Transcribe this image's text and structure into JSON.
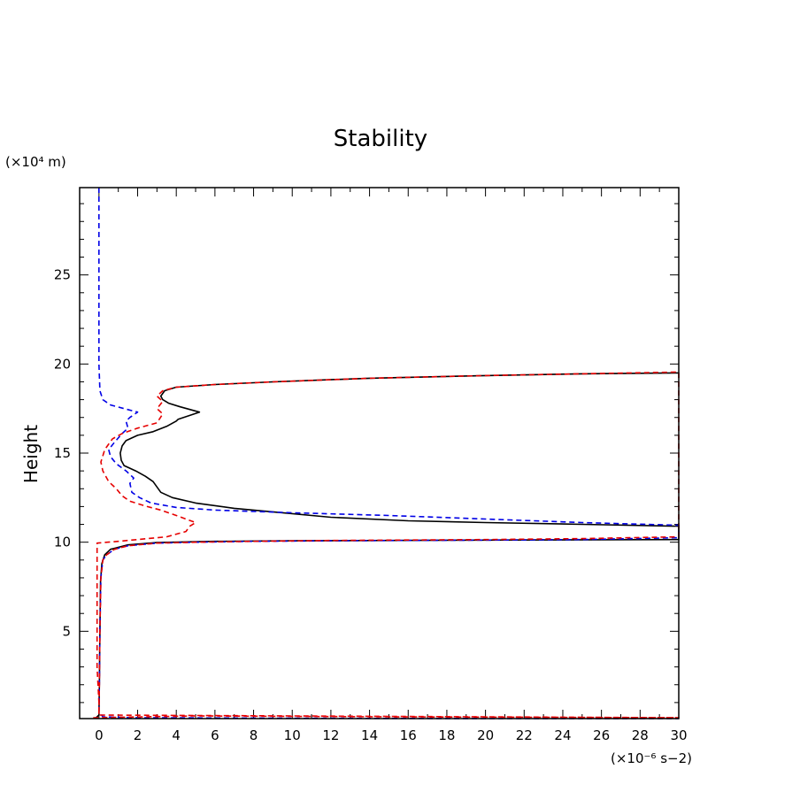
{
  "chart_data": {
    "type": "line",
    "title": "Stability",
    "xlabel": "",
    "ylabel": "Height",
    "x_unit_label": "(×10⁻⁶ s−2)",
    "y_unit_label": "(×10⁴ m)",
    "xlim": [
      -1,
      30
    ],
    "ylim": [
      0.1,
      29.9
    ],
    "x_ticks": [
      0,
      2,
      4,
      6,
      8,
      10,
      12,
      14,
      16,
      18,
      20,
      22,
      24,
      26,
      28,
      30
    ],
    "y_ticks": [
      5,
      10,
      15,
      20,
      25
    ],
    "grid": false,
    "legend": "none",
    "series": [
      {
        "color": "#000000",
        "dash": "solid",
        "points": [
          [
            -0.2,
            0.1
          ],
          [
            0,
            0.3
          ],
          [
            0.02,
            2
          ],
          [
            0.05,
            5
          ],
          [
            0.08,
            7.8
          ],
          [
            0.15,
            8.8
          ],
          [
            0.3,
            9.3
          ],
          [
            0.6,
            9.6
          ],
          [
            1.5,
            9.85
          ],
          [
            3,
            9.98
          ],
          [
            6,
            10.05
          ],
          [
            10,
            10.08
          ],
          [
            20,
            10.12
          ],
          [
            30,
            10.15
          ],
          [
            30,
            10.9
          ],
          [
            25,
            11.0
          ],
          [
            20,
            11.1
          ],
          [
            16,
            11.2
          ],
          [
            12,
            11.4
          ],
          [
            9,
            11.7
          ],
          [
            7,
            11.9
          ],
          [
            5,
            12.2
          ],
          [
            3.8,
            12.5
          ],
          [
            3.2,
            12.8
          ],
          [
            3,
            13.1
          ],
          [
            2.8,
            13.4
          ],
          [
            2.4,
            13.7
          ],
          [
            1.9,
            14.0
          ],
          [
            1.5,
            14.2
          ],
          [
            1.3,
            14.3
          ],
          [
            1.15,
            14.6
          ],
          [
            1.1,
            15
          ],
          [
            1.2,
            15.4
          ],
          [
            1.4,
            15.7
          ],
          [
            2,
            16.0
          ],
          [
            2.8,
            16.2
          ],
          [
            3.5,
            16.5
          ],
          [
            4,
            16.8
          ],
          [
            4.1,
            16.9
          ],
          [
            5.2,
            17.3
          ],
          [
            4.2,
            17.6
          ],
          [
            3.6,
            17.8
          ],
          [
            3.3,
            18.0
          ],
          [
            3.2,
            18.2
          ],
          [
            3.4,
            18.5
          ],
          [
            4,
            18.7
          ],
          [
            6,
            18.85
          ],
          [
            9,
            19.0
          ],
          [
            14,
            19.2
          ],
          [
            20,
            19.35
          ],
          [
            25,
            19.45
          ],
          [
            30,
            19.5
          ]
        ]
      },
      {
        "color": "#0000e6",
        "dash": "dashed",
        "points": [
          [
            0,
            29.9
          ],
          [
            0,
            25
          ],
          [
            0,
            20
          ],
          [
            0.05,
            18.5
          ],
          [
            0.2,
            18
          ],
          [
            0.6,
            17.7
          ],
          [
            1.3,
            17.5
          ],
          [
            2,
            17.3
          ],
          [
            1.6,
            17
          ],
          [
            1.4,
            16.8
          ],
          [
            1.5,
            16.4
          ],
          [
            1.2,
            16.1
          ],
          [
            0.8,
            15.6
          ],
          [
            0.5,
            15.2
          ],
          [
            0.6,
            14.8
          ],
          [
            0.9,
            14.4
          ],
          [
            1.4,
            14.0
          ],
          [
            1.8,
            13.6
          ],
          [
            1.6,
            13.3
          ],
          [
            1.7,
            12.8
          ],
          [
            2.1,
            12.5
          ],
          [
            2.7,
            12.2
          ],
          [
            4,
            11.95
          ],
          [
            6,
            11.8
          ],
          [
            10,
            11.65
          ],
          [
            15,
            11.5
          ],
          [
            20,
            11.3
          ],
          [
            25,
            11.1
          ],
          [
            30,
            10.95
          ],
          [
            30,
            10.25
          ],
          [
            25,
            10.15
          ],
          [
            20,
            10.12
          ],
          [
            12,
            10.08
          ],
          [
            8,
            10.05
          ],
          [
            5,
            10.0
          ],
          [
            3,
            9.95
          ],
          [
            1.5,
            9.8
          ],
          [
            0.8,
            9.6
          ],
          [
            0.4,
            9.3
          ],
          [
            0.2,
            9.0
          ],
          [
            0.1,
            8.0
          ],
          [
            0.05,
            5
          ],
          [
            0.02,
            2
          ],
          [
            0,
            0.5
          ],
          [
            0.2,
            0.2
          ],
          [
            2,
            0.15
          ],
          [
            10,
            0.12
          ],
          [
            20,
            0.1
          ],
          [
            30,
            0.1
          ]
        ]
      },
      {
        "color": "#e60000",
        "dash": "dashed",
        "points": [
          [
            -0.3,
            0.15
          ],
          [
            5,
            0.25
          ],
          [
            15,
            0.2
          ],
          [
            30,
            0.15
          ],
          [
            0,
            0.3
          ],
          [
            0,
            1
          ],
          [
            -0.1,
            3
          ],
          [
            -0.1,
            6
          ],
          [
            -0.1,
            9
          ],
          [
            -0.1,
            9.7
          ],
          [
            -0.1,
            9.95
          ],
          [
            1,
            10.05
          ],
          [
            3.5,
            10.3
          ],
          [
            4.5,
            10.6
          ],
          [
            4.7,
            10.9
          ],
          [
            5,
            11.1
          ],
          [
            4,
            11.5
          ],
          [
            3.2,
            11.8
          ],
          [
            2.5,
            12.0
          ],
          [
            1.6,
            12.3
          ],
          [
            1.2,
            12.6
          ],
          [
            0.9,
            13.0
          ],
          [
            0.5,
            13.4
          ],
          [
            0.2,
            14.0
          ],
          [
            0.1,
            14.5
          ],
          [
            0.3,
            15.2
          ],
          [
            0.7,
            15.8
          ],
          [
            1.2,
            16.1
          ],
          [
            2,
            16.4
          ],
          [
            3,
            16.7
          ],
          [
            3.3,
            17.2
          ],
          [
            3,
            17.5
          ],
          [
            3.3,
            17.9
          ],
          [
            3,
            18.2
          ],
          [
            3.3,
            18.5
          ],
          [
            4,
            18.7
          ],
          [
            6,
            18.85
          ],
          [
            9,
            19.0
          ],
          [
            14,
            19.2
          ],
          [
            20,
            19.35
          ],
          [
            25,
            19.45
          ],
          [
            30,
            19.55
          ],
          [
            30,
            10.3
          ],
          [
            25,
            10.2
          ],
          [
            20,
            10.15
          ],
          [
            12,
            10.1
          ],
          [
            8,
            10.05
          ],
          [
            5,
            10.0
          ],
          [
            3,
            9.95
          ],
          [
            1.5,
            9.8
          ],
          [
            0.8,
            9.6
          ],
          [
            0.4,
            9.3
          ],
          [
            0.2,
            9.0
          ],
          [
            0.1,
            8.0
          ],
          [
            0.05,
            5
          ],
          [
            0.02,
            2
          ],
          [
            0,
            0.3
          ]
        ]
      }
    ]
  }
}
